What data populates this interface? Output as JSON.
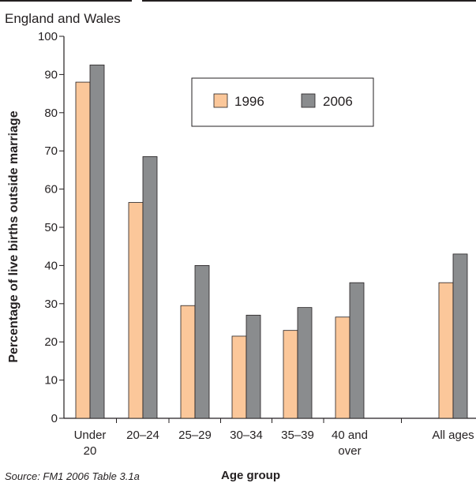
{
  "chart_data": {
    "type": "bar",
    "subtitle": "England and Wales",
    "xlabel": "Age group",
    "ylabel": "Percentage of live births outside marriage",
    "ylim": [
      0,
      100
    ],
    "yticks": [
      0,
      10,
      20,
      30,
      40,
      50,
      60,
      70,
      80,
      90,
      100
    ],
    "categories": [
      [
        "Under",
        "20"
      ],
      [
        "20–24"
      ],
      [
        "25–29"
      ],
      [
        "30–34"
      ],
      [
        "35–39"
      ],
      [
        "40 and",
        "over"
      ],
      [
        "All ages"
      ]
    ],
    "series": [
      {
        "name": "1996",
        "color": "#fbc79a",
        "values": [
          88,
          56.5,
          29.5,
          21.5,
          23,
          26.5,
          35.5
        ]
      },
      {
        "name": "2006",
        "color": "#8a8c8e",
        "values": [
          92.5,
          68.5,
          40,
          27,
          29,
          35.5,
          43
        ]
      }
    ],
    "legend_position": "top-right",
    "grid": false,
    "source": "Source: FM1 2006 Table 3.1a"
  }
}
